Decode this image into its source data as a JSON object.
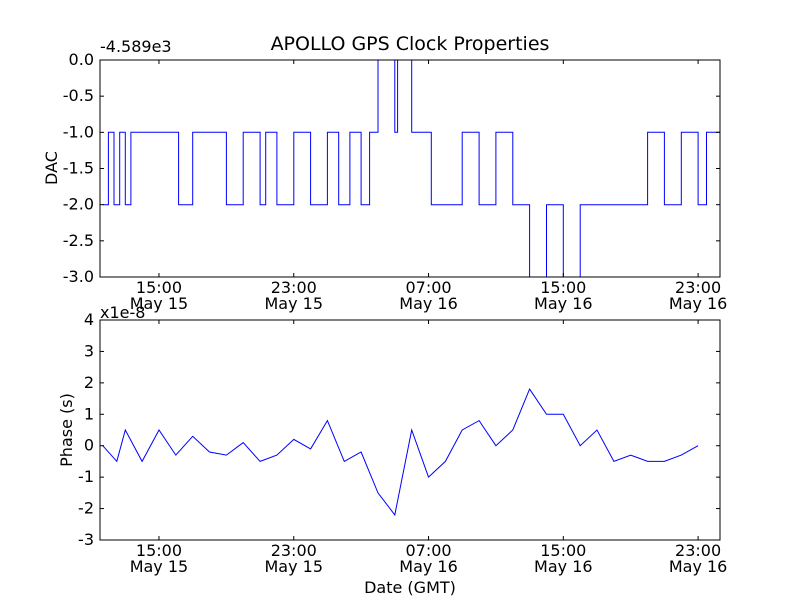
{
  "figure": {
    "title": "APOLLO GPS Clock Properties",
    "xlabel": "Date (GMT)"
  },
  "chart_data": [
    {
      "type": "line",
      "ylabel": "DAC",
      "offset_label": "-4.589e3",
      "ylim": [
        -3.0,
        0.0
      ],
      "yticks": [
        0.0,
        -0.5,
        -1.0,
        -1.5,
        -2.0,
        -2.5,
        -3.0
      ],
      "ytick_labels": [
        "0.0",
        "-0.5",
        "-1.0",
        "-1.5",
        "-2.0",
        "-2.5",
        "-3.0"
      ],
      "xlim_hours": [
        11.5,
        24.3
      ],
      "xticks": [
        {
          "time": "15:00",
          "date": "May 15"
        },
        {
          "time": "23:00",
          "date": "May 15"
        },
        {
          "time": "07:00",
          "date": "May 16"
        },
        {
          "time": "15:00",
          "date": "May 16"
        },
        {
          "time": "23:00",
          "date": "May 16"
        }
      ],
      "color": "#0000ff",
      "series": [
        {
          "x": [
            "May 15 11:40",
            "May 15 12:00",
            "May 15 12:20",
            "May 15 12:40",
            "May 15 13:00",
            "May 15 13:20",
            "May 15 16:10",
            "May 15 17:00",
            "May 15 19:00",
            "May 15 20:00",
            "May 15 21:00",
            "May 15 21:20",
            "May 15 22:00",
            "May 15 23:00",
            "May 16 00:00",
            "May 16 01:00",
            "May 16 01:40",
            "May 16 02:20",
            "May 16 03:00",
            "May 16 03:30",
            "May 16 04:00",
            "May 16 05:00",
            "May 16 05:10",
            "May 16 06:00",
            "May 16 07:00",
            "May 16 07:10",
            "May 16 09:00",
            "May 16 10:00",
            "May 16 11:00",
            "May 16 12:00",
            "May 16 13:00",
            "May 16 14:00",
            "May 16 15:00",
            "May 16 16:00",
            "May 16 18:00",
            "May 16 20:00",
            "May 16 21:00",
            "May 16 22:00",
            "May 16 23:00",
            "May 16 23:30"
          ],
          "values": [
            -2,
            -1,
            -2,
            -1,
            -2,
            -1,
            -2,
            -1,
            -2,
            -1,
            -2,
            -1,
            -2,
            -1,
            -2,
            -1,
            -2,
            -1,
            -2,
            -1,
            0,
            -1,
            0,
            -1,
            -1,
            -2,
            -1,
            -2,
            -1,
            -2,
            -3,
            -2,
            -3,
            -2,
            -2,
            -1,
            -2,
            -1,
            -2,
            -1
          ]
        }
      ]
    },
    {
      "type": "line",
      "ylabel": "Phase (s)",
      "offset_label": "x1e-8",
      "ylim": [
        -3,
        4
      ],
      "yticks": [
        4,
        3,
        2,
        1,
        0,
        -1,
        -2,
        -3
      ],
      "ytick_labels": [
        "4",
        "3",
        "2",
        "1",
        "0",
        "-1",
        "-2",
        "-3"
      ],
      "xlim_hours": [
        11.5,
        24.3
      ],
      "xticks": [
        {
          "time": "15:00",
          "date": "May 15"
        },
        {
          "time": "23:00",
          "date": "May 15"
        },
        {
          "time": "07:00",
          "date": "May 16"
        },
        {
          "time": "15:00",
          "date": "May 16"
        },
        {
          "time": "23:00",
          "date": "May 16"
        }
      ],
      "color": "#0000ff",
      "series": [
        {
          "x": [
            "May 15 11:40",
            "May 15 12:30",
            "May 15 13:00",
            "May 15 14:00",
            "May 15 15:00",
            "May 15 16:00",
            "May 15 17:00",
            "May 15 18:00",
            "May 15 19:00",
            "May 15 20:00",
            "May 15 21:00",
            "May 15 22:00",
            "May 15 23:00",
            "May 16 00:00",
            "May 16 01:00",
            "May 16 02:00",
            "May 16 03:00",
            "May 16 04:00",
            "May 16 05:00",
            "May 16 06:00",
            "May 16 07:00",
            "May 16 08:00",
            "May 16 09:00",
            "May 16 10:00",
            "May 16 11:00",
            "May 16 12:00",
            "May 16 13:00",
            "May 16 14:00",
            "May 16 15:00",
            "May 16 16:00",
            "May 16 17:00",
            "May 16 18:00",
            "May 16 19:00",
            "May 16 20:00",
            "May 16 21:00",
            "May 16 22:00",
            "May 16 23:00"
          ],
          "values": [
            0.0,
            -0.5,
            0.5,
            -0.5,
            0.5,
            -0.3,
            0.3,
            -0.2,
            -0.3,
            0.1,
            -0.5,
            -0.3,
            0.2,
            -0.1,
            0.8,
            -0.5,
            -0.2,
            -1.5,
            -2.2,
            0.5,
            -1.0,
            -0.5,
            0.5,
            0.8,
            0.0,
            0.5,
            1.8,
            1.0,
            1.0,
            0.0,
            0.5,
            -0.5,
            -0.3,
            -0.5,
            -0.5,
            -0.3,
            0.0
          ]
        }
      ]
    }
  ]
}
